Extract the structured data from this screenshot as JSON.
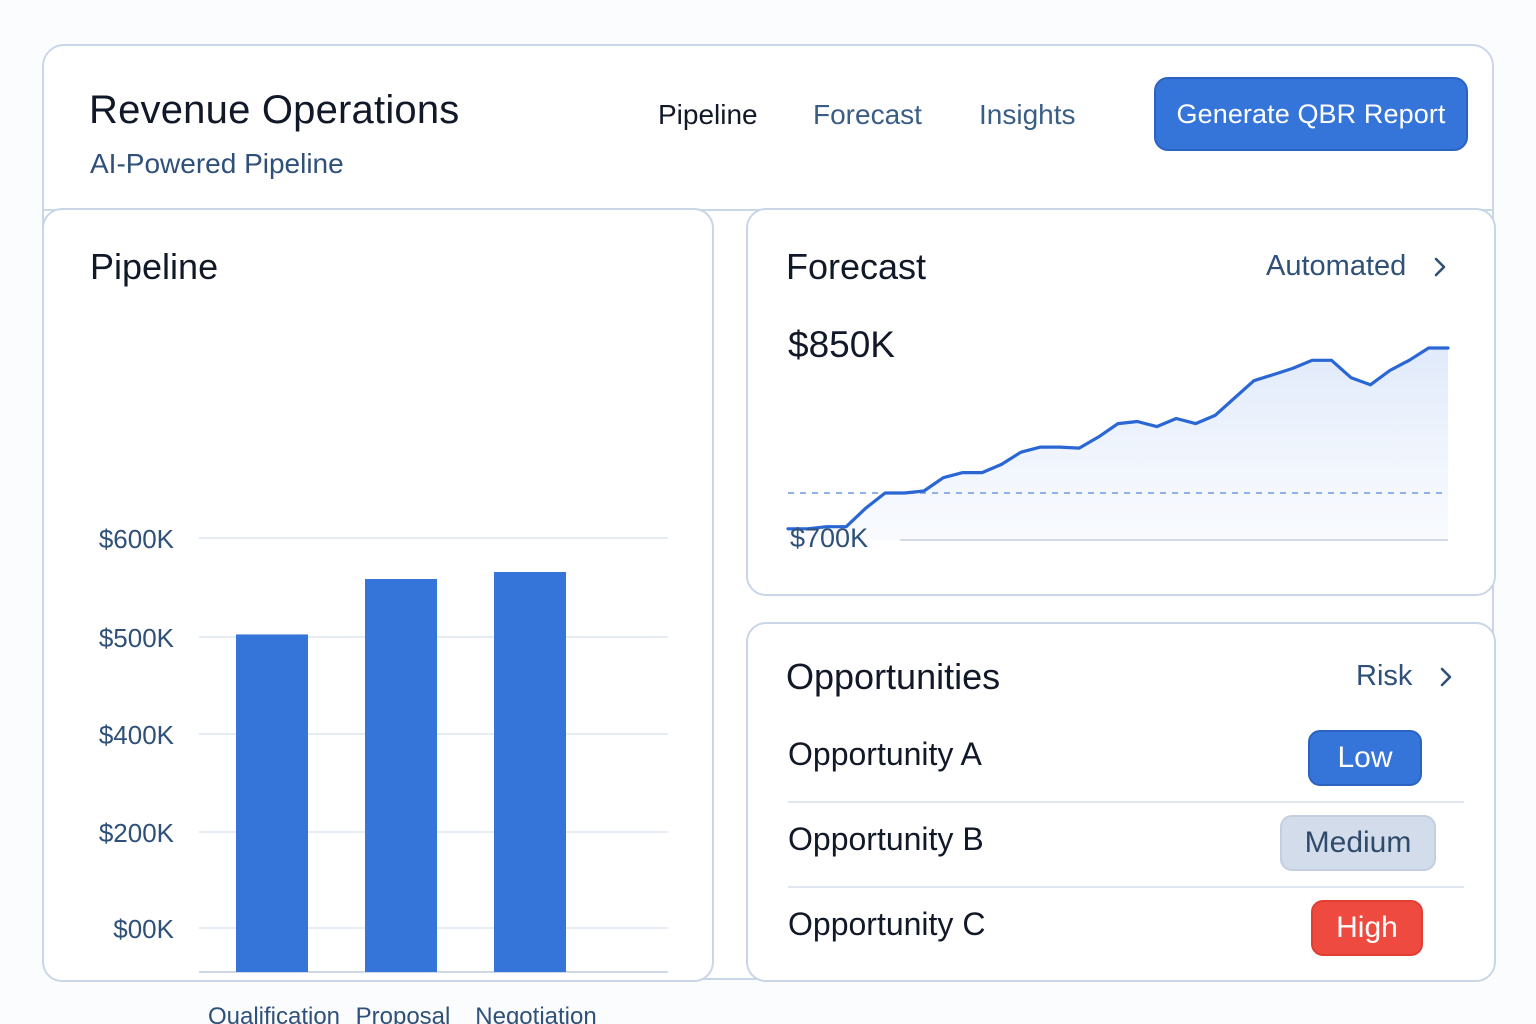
{
  "header": {
    "title": "Revenue Operations",
    "subtitle": "AI-Powered Pipeline",
    "tabs": [
      {
        "label": "Pipeline",
        "active": true
      },
      {
        "label": "Forecast",
        "active": false
      },
      {
        "label": "Insights",
        "active": false
      }
    ],
    "cta_label": "Generate QBR Report"
  },
  "pipeline": {
    "title": "Pipeline"
  },
  "forecast": {
    "title": "Forecast",
    "link_label": "Automated",
    "value": "$850K",
    "baseline_label": "$700K"
  },
  "opportunities": {
    "title": "Opportunities",
    "link_label": "Risk",
    "rows": [
      {
        "name": "Opportunity A",
        "risk": "Low"
      },
      {
        "name": "Opportunity B",
        "risk": "Medium"
      },
      {
        "name": "Opportunity C",
        "risk": "High"
      }
    ]
  },
  "colors": {
    "accent": "#3574d9",
    "risk_low": "#3574d9",
    "risk_medium": "#d3dcea",
    "risk_high": "#ef4a40"
  },
  "chart_data": [
    {
      "type": "bar",
      "title": "Pipeline",
      "categories": [
        "Qualification",
        "Proposal",
        "Negotiation"
      ],
      "y_tick_labels": [
        "$00K",
        "$200K",
        "$400K",
        "$500K",
        "$600K"
      ],
      "values": [
        481,
        560,
        570
      ],
      "unit": "$K",
      "grid": true
    },
    {
      "type": "area",
      "title": "Forecast",
      "values": [
        705,
        705,
        707,
        707,
        725,
        740,
        740,
        742,
        755,
        760,
        760,
        768,
        780,
        785,
        785,
        784,
        795,
        808,
        810,
        805,
        813,
        808,
        816,
        833,
        850,
        856,
        862,
        870,
        870,
        853,
        846,
        860,
        870,
        882,
        882
      ],
      "reference_line": 740,
      "ylim": [
        694,
        882
      ],
      "grid": false
    }
  ]
}
